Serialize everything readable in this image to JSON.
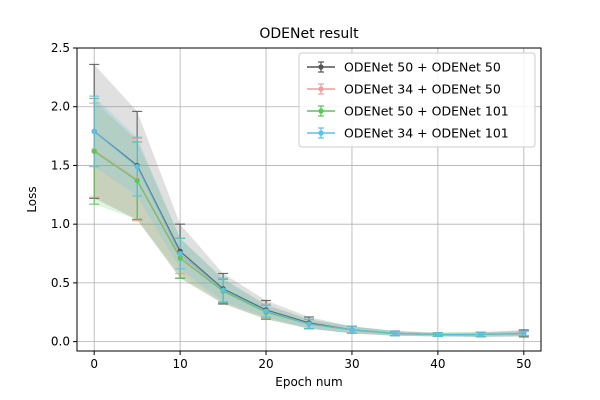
{
  "chart_data": {
    "type": "line",
    "title": "ODENet result",
    "xlabel": "Epoch num",
    "ylabel": "Loss",
    "xlim": [
      -2,
      52
    ],
    "ylim": [
      -0.08,
      2.5
    ],
    "xticks": [
      0,
      10,
      20,
      30,
      40,
      50
    ],
    "yticks": [
      0.0,
      0.5,
      1.0,
      1.5,
      2.0,
      2.5
    ],
    "xtick_labels": [
      "0",
      "10",
      "20",
      "30",
      "40",
      "50"
    ],
    "ytick_labels": [
      "0.0",
      "0.5",
      "1.0",
      "1.5",
      "2.0",
      "2.5"
    ],
    "grid": true,
    "legend_position": "top-right",
    "x": [
      0,
      5,
      10,
      15,
      20,
      25,
      30,
      35,
      40,
      45,
      50
    ],
    "series": [
      {
        "name": "ODENet 50 + ODENet 50",
        "color": "#555555",
        "values": [
          1.79,
          1.5,
          0.77,
          0.45,
          0.27,
          0.16,
          0.1,
          0.07,
          0.06,
          0.06,
          0.07
        ],
        "errors": [
          0.57,
          0.46,
          0.23,
          0.13,
          0.08,
          0.05,
          0.03,
          0.02,
          0.015,
          0.02,
          0.03
        ]
      },
      {
        "name": "ODENet 34 + ODENet 50",
        "color": "#e8a0a0",
        "values": [
          1.63,
          1.38,
          0.73,
          0.43,
          0.26,
          0.15,
          0.1,
          0.07,
          0.06,
          0.06,
          0.07
        ],
        "errors": [
          0.4,
          0.35,
          0.15,
          0.1,
          0.06,
          0.04,
          0.03,
          0.02,
          0.015,
          0.02,
          0.02
        ]
      },
      {
        "name": "ODENet 50 + ODENet 101",
        "color": "#55c855",
        "values": [
          1.62,
          1.37,
          0.71,
          0.43,
          0.25,
          0.15,
          0.1,
          0.07,
          0.06,
          0.06,
          0.07
        ],
        "errors": [
          0.45,
          0.33,
          0.17,
          0.1,
          0.06,
          0.04,
          0.03,
          0.02,
          0.015,
          0.02,
          0.02
        ]
      },
      {
        "name": "ODENet 34 + ODENet 101",
        "color": "#5bc0e8",
        "values": [
          1.79,
          1.49,
          0.75,
          0.44,
          0.26,
          0.15,
          0.1,
          0.07,
          0.06,
          0.06,
          0.07
        ],
        "errors": [
          0.3,
          0.25,
          0.13,
          0.1,
          0.05,
          0.04,
          0.03,
          0.02,
          0.015,
          0.02,
          0.02
        ]
      }
    ]
  }
}
